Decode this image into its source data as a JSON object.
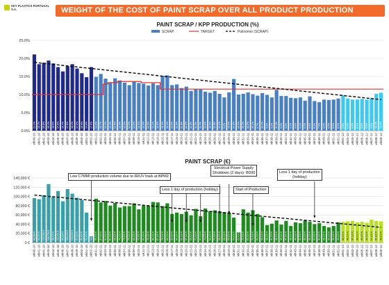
{
  "header": {
    "logo_text": "KEY PLASTICS PORTUGAL S.A.",
    "title": "WEIGHT OF THE COST OF PAINT SCRAP OVER ALL PRODUCT PRODUCTION"
  },
  "colors": {
    "title_bar": "#f26b2a",
    "scrap_2010": "#1f2a8c",
    "scrap_2011": "#4a7fc4",
    "scrap_2012": "#3fc8f0",
    "target_line": "#e03030",
    "trend_line": "#000000",
    "eur_2010": "#3aa0a8",
    "eur_2011": "#1f8a1f",
    "eur_2012": "#b8e020"
  },
  "chart_data": [
    {
      "type": "bar",
      "title": "PAINT SCRAP / KPP PRODUCTION (%)",
      "legend": [
        "SCRAP",
        "TARGET",
        "Polinómio (SCRAP)"
      ],
      "legend_position": "top",
      "ylim": [
        0,
        25
      ],
      "yticks": [
        "0.0%",
        "5.0%",
        "10.0%",
        "15.0%",
        "20.0%",
        "25.0%"
      ],
      "grid": true,
      "categories": [
        "wk40-10",
        "wk41-10",
        "wk42-10",
        "wk43-10",
        "wk44-10",
        "wk45-10",
        "wk46-10",
        "wk47-10",
        "wk48-10",
        "wk49-10",
        "wk50-10",
        "wk51-10",
        "wk52-10",
        "wk01-11",
        "wk02-11",
        "wk03-11",
        "wk04-11",
        "wk05-11",
        "wk06-11",
        "wk07-11",
        "wk08-11",
        "wk09-11",
        "wk10-11",
        "wk11-11",
        "wk12-11",
        "wk13-11",
        "wk14-11",
        "wk15-11",
        "wk16-11",
        "wk17-11",
        "wk18-11",
        "wk19-11",
        "wk20-11",
        "wk21-11",
        "wk22-11",
        "wk23-11",
        "wk24-11",
        "wk25-11",
        "wk26-11",
        "wk27-11",
        "wk28-11",
        "wk29-11",
        "wk30-11",
        "wk31-11",
        "wk32-11",
        "wk33-11",
        "wk34-11",
        "wk35-11",
        "wk36-11",
        "wk37-11",
        "wk38-11",
        "wk39-11",
        "wk40-11",
        "wk41-11",
        "wk42-11",
        "wk43-11",
        "wk44-11",
        "wk45-11",
        "wk46-11",
        "wk47-11",
        "wk48-11",
        "wk49-11",
        "wk50-11",
        "wk51-11",
        "wk52-11",
        "wk01-12",
        "wk02-12",
        "wk03-12",
        "wk04-12",
        "wk05-12",
        "wk06-12",
        "wk07-12",
        "wk08-12",
        "wk09-12"
      ],
      "series": [
        {
          "name": "SCRAP",
          "values": [
            21.1,
            18.4,
            18.8,
            19.4,
            18.6,
            17.6,
            16.4,
            17.8,
            18.4,
            17.2,
            15.9,
            14.8,
            17.6,
            14.9,
            15.7,
            14.4,
            13.3,
            14.5,
            13.9,
            13.3,
            12.6,
            13.6,
            13.2,
            13.0,
            12.5,
            13.1,
            12.6,
            15.2,
            15.3,
            12.6,
            12.8,
            11.8,
            12.2,
            11.0,
            11.5,
            11.4,
            10.8,
            10.5,
            11.0,
            10.2,
            9.2,
            10.6,
            14.3,
            10.0,
            10.2,
            10.6,
            10.1,
            9.7,
            10.4,
            9.9,
            9.2,
            11.3,
            9.6,
            9.6,
            9.1,
            9.0,
            9.2,
            8.3,
            9.5,
            8.2,
            7.9,
            8.6,
            8.5,
            8.6,
            8.9,
            9.8,
            8.9,
            8.6,
            8.6,
            8.8,
            8.6,
            9.0,
            10.2,
            10.5
          ]
        }
      ],
      "target": {
        "name": "TARGET",
        "values": [
          10,
          10,
          10,
          10,
          10,
          10,
          10,
          10,
          10,
          10,
          10,
          10,
          10,
          10,
          10,
          12.9,
          13.3,
          13.3,
          13.6,
          13.6,
          13.6,
          13.6,
          13.6,
          13.3,
          13.3,
          13.3,
          13.3,
          11.5,
          11.5,
          11.5,
          11.5,
          11.5,
          11.5,
          11.5,
          11.5,
          11.5,
          11.5,
          11.5,
          11.5,
          11.5,
          11.5,
          11.5,
          11.5,
          11.5,
          11.5,
          11.5,
          11.5,
          11.5,
          11.5,
          11.5,
          11.5,
          11.5,
          11.5,
          11.5,
          11.5,
          11.5,
          11.5,
          11.5,
          11.5,
          11.5,
          11.5,
          11.5,
          11.5,
          11.5,
          11.5,
          11.5,
          11.5,
          11.5,
          11.5,
          11.5,
          11.5,
          11.5,
          11.5,
          11.5
        ]
      },
      "trend": {
        "name": "Polinómio (SCRAP)",
        "start": 18.9,
        "end": 8.6
      },
      "data_labels": [
        "21.1%",
        "18.4%",
        "18.8%",
        "19.4%",
        "18.6%",
        "17.6%",
        "16.4%",
        "17.8%",
        "18.4%",
        "17.2%",
        "15.9%",
        "14.8%",
        "17.6%",
        "14.9%",
        "15.7%",
        "14.4%",
        "13.3%",
        "14.5%",
        "13.9%",
        "13.3%",
        "12.6%",
        "13.6%",
        "13.2%",
        "13.0%",
        "12.5%",
        "13.1%",
        "12.6%",
        "15.2%",
        "15.3%",
        "12.6%",
        "12.8%",
        "11.8%",
        "12.2%",
        "11.0%",
        "11.5%",
        "11.4%",
        "10.8%",
        "10.5%",
        "11.0%",
        "10.2%",
        "9.2%",
        "10.6%",
        "14.3%",
        "10.0%",
        "10.2%",
        "10.6%",
        "10.1%",
        "9.7%",
        "10.4%",
        "9.9%",
        "9.2%",
        "11.3%",
        "9.6%",
        "9.6%",
        "9.1%",
        "9.0%",
        "9.2%",
        "8.3%",
        "9.5%",
        "8.2%",
        "7.9%",
        "8.6%",
        "8.5%",
        "8.6%",
        "8.9%",
        "9.8%",
        "8.9%",
        "8.6%",
        "8.6%",
        "8.8%",
        "8.6%",
        "9.0%",
        "10.2%",
        "10.5%"
      ]
    },
    {
      "type": "bar",
      "title": "PAINT SCRAP (€)",
      "ylim": [
        0,
        140000
      ],
      "yticks": [
        "0 €",
        "20,000 €",
        "40,000 €",
        "60,000 €",
        "80,000 €",
        "100,000 €",
        "120,000 €",
        "140,000 €"
      ],
      "grid": true,
      "categories": [
        "wk40-10",
        "wk41-10",
        "wk42-10",
        "wk43-10",
        "wk44-10",
        "wk45-10",
        "wk46-10",
        "wk47-10",
        "wk48-10",
        "wk49-10",
        "wk50-10",
        "wk51-10",
        "wk52-10",
        "wk01-11",
        "wk02-11",
        "wk03-11",
        "wk04-11",
        "wk05-11",
        "wk06-11",
        "wk07-11",
        "wk08-11",
        "wk09-11",
        "wk10-11",
        "wk11-11",
        "wk12-11",
        "wk13-11",
        "wk14-11",
        "wk15-11",
        "wk16-11",
        "wk17-11",
        "wk18-11",
        "wk19-11",
        "wk20-11",
        "wk21-11",
        "wk22-11",
        "wk23-11",
        "wk24-11",
        "wk25-11",
        "wk26-11",
        "wk27-11",
        "wk28-11",
        "wk29-11",
        "wk30-11",
        "wk31-11",
        "wk32-11",
        "wk33-11",
        "wk34-11",
        "wk35-11",
        "wk36-11",
        "wk37-11",
        "wk38-11",
        "wk39-11",
        "wk40-11",
        "wk41-11",
        "wk42-11",
        "wk43-11",
        "wk44-11",
        "wk45-11",
        "wk46-11",
        "wk47-11",
        "wk48-11",
        "wk49-11",
        "wk50-11",
        "wk51-11",
        "wk52-11",
        "wk01-12",
        "wk02-12",
        "wk03-12",
        "wk04-12",
        "wk05-12",
        "wk06-12",
        "wk07-12",
        "wk08-12",
        "wk09-12"
      ],
      "series": [
        {
          "name": "",
          "values": [
            96354,
            94000,
            102741,
            126779,
            99000,
            111711,
            89614,
            116000,
            106000,
            97000,
            92000,
            65000,
            14000,
            95000,
            87000,
            90000,
            80000,
            86000,
            76000,
            79000,
            79000,
            85000,
            72000,
            80000,
            79000,
            88000,
            87000,
            79000,
            85000,
            62000,
            65000,
            62000,
            67000,
            59000,
            73000,
            57000,
            74000,
            68000,
            70000,
            68000,
            66000,
            64000,
            54000,
            22000,
            72000,
            65000,
            70000,
            62000,
            55000,
            38000,
            41000,
            48000,
            39000,
            47000,
            36000,
            44000,
            42000,
            48000,
            45000,
            40000,
            42000,
            36000,
            33000,
            36000,
            44000,
            45000,
            46000,
            47000,
            44000,
            45000,
            43000,
            50000,
            47000,
            46000
          ]
        }
      ],
      "trend": {
        "start": 103000,
        "end": 33000
      },
      "data_labels": [
        "96,354 €",
        "94,000 €",
        "102,741 €",
        "126,779 €",
        "99,000 €",
        "111,711 €",
        "89,614 €",
        "116,000 €",
        "106,000 €",
        "97,000 €",
        "92,000 €",
        "65,000 €",
        "14,000 €",
        "95,000 €",
        "87,000 €",
        "90,000 €",
        "80,000 €",
        "86,000 €",
        "76,000 €",
        "79,000 €",
        "79,000 €",
        "85,000 €",
        "72,000 €",
        "80,000 €",
        "79,000 €",
        "88,000 €",
        "87,000 €",
        "79,000 €",
        "85,000 €",
        "62,000 €",
        "65,000 €",
        "62,000 €",
        "67,000 €",
        "59,000 €",
        "73,000 €",
        "57,000 €",
        "74,000 €",
        "68,000 €",
        "70,000 €",
        "68,000 €",
        "66,000 €",
        "64,000 €",
        "54,000 €",
        "22,000 €",
        "72,000 €",
        "65,000 €",
        "70,000 €",
        "62,000 €",
        "55,000 €",
        "38,000 €",
        "41,000 €",
        "48,000 €",
        "39,000 €",
        "47,000 €",
        "36,000 €",
        "44,000 €",
        "42,000 €",
        "48,000 €",
        "45,000 €",
        "40,000 €",
        "42,000 €",
        "36,000 €",
        "33,000 €",
        "36,000 €",
        "44,000 €",
        "45,000 €",
        "46,000 €",
        "47,000 €",
        "44,000 €",
        "45,000 €",
        "43,000 €",
        "50,000 €",
        "47,000 €",
        "46,000 €"
      ],
      "annotations": [
        {
          "text": "Low C7MMI production volume due to IR/UV trials at BPM2",
          "week": "wk52-10"
        },
        {
          "text": "Electrical Power Supply\nShutdown (2 days): BD95",
          "week": "wk27-11"
        },
        {
          "text": "Less 1 day of production\n(holiday)",
          "week": "wk47-11"
        },
        {
          "text": "Less 1 day of production (holiday)",
          "week": "wk17-11"
        },
        {
          "text": "Start of Production",
          "week": "wk34-11"
        }
      ]
    }
  ]
}
